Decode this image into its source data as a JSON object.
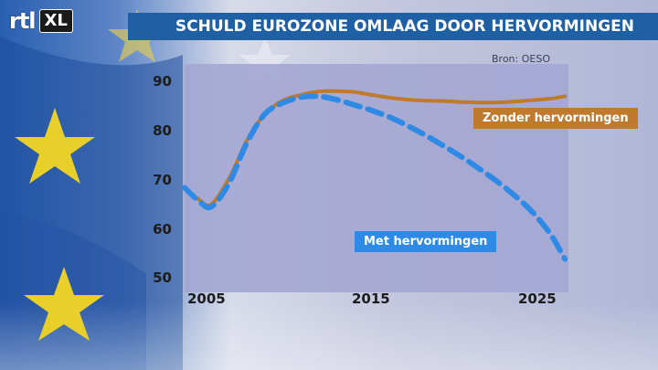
{
  "brand": {
    "logo_text": "rtl",
    "logo_badge": "XL"
  },
  "title": "SCHULD EUROZONE OMLAAG DOOR HERVORMINGEN",
  "source": "Bron: OESO",
  "colors": {
    "title_bar": "#1f5fa3",
    "zonder": "#bf7a2e",
    "met": "#2f8ae6",
    "plot_bg": "#a4a6d2"
  },
  "chart_data": {
    "type": "line",
    "title": "SCHULD EUROZONE OMLAAG DOOR HERVORMINGEN",
    "xlabel": "",
    "ylabel": "",
    "xlim": [
      2005,
      2026.5
    ],
    "ylim": [
      48,
      96
    ],
    "x_ticks": [
      "2005",
      "2015",
      "2025"
    ],
    "y_ticks": [
      "90",
      "80",
      "70",
      "60",
      "50"
    ],
    "series": [
      {
        "name": "Zonder hervormingen",
        "style": "solid",
        "x": [
          2005,
          2005.8,
          2006.5,
          2007.5,
          2008.5,
          2009.5,
          2010.5,
          2011.5,
          2012.5,
          2013.5,
          2014.5,
          2015.5,
          2016.5,
          2017.5,
          2018.5,
          2019.5,
          2020.5,
          2021.5,
          2022.5,
          2023.5,
          2024.5,
          2025.5,
          2026.3
        ],
        "y": [
          70,
          67.5,
          66.5,
          72,
          80,
          85.5,
          88.3,
          89.5,
          90.2,
          90.3,
          90.1,
          89.5,
          88.9,
          88.5,
          88.3,
          88.2,
          88.0,
          87.9,
          87.9,
          88.1,
          88.4,
          88.7,
          89.2
        ]
      },
      {
        "name": "Met hervormingen",
        "style": "dashed",
        "x": [
          2005,
          2005.8,
          2006.5,
          2007.5,
          2008.5,
          2009.5,
          2010.5,
          2011.5,
          2012.5,
          2013.5,
          2014.5,
          2015.5,
          2016.5,
          2017.5,
          2018.5,
          2019.5,
          2020.5,
          2021.5,
          2022.5,
          2023.5,
          2024.5,
          2025.5,
          2026.3
        ],
        "y": [
          70,
          67.2,
          66.0,
          71,
          79.5,
          85.5,
          87.8,
          89.0,
          89.2,
          88.5,
          87.4,
          86.2,
          84.8,
          83.0,
          81.0,
          78.8,
          76.5,
          74.0,
          71.3,
          68.3,
          64.8,
          60.2,
          55.0
        ]
      }
    ]
  }
}
